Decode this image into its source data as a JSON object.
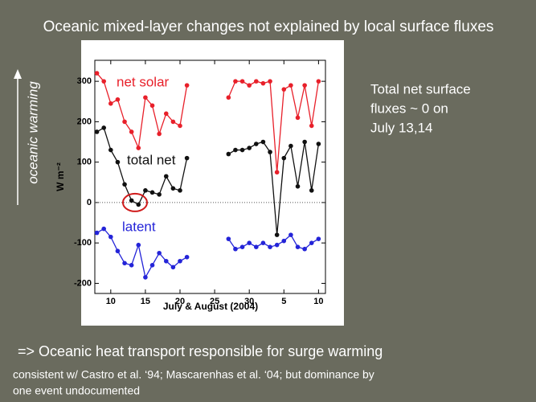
{
  "slide": {
    "title": "Oceanic mixed-layer changes not explained by local surface fluxes",
    "side_note": [
      "Total net surface",
      "fluxes ~  0 on",
      "July 13,14"
    ],
    "arrow_label": "oceanic warming",
    "conclusion": "=> Oceanic heat transport responsible for surge warming",
    "footnote": [
      "consistent w/ Castro et al. ‘94; Mascarenhas et al. ‘04; but dominance by",
      "one event undocumented"
    ]
  },
  "chart_data": {
    "type": "line",
    "x_label": "July & August (2004)",
    "y_label": "W m⁻²",
    "x": [
      8,
      9,
      10,
      11,
      12,
      13,
      14,
      15,
      16,
      17,
      18,
      19,
      20,
      21,
      24,
      27,
      28,
      29,
      30,
      31,
      32,
      33,
      34,
      35,
      36,
      37,
      38,
      39,
      40
    ],
    "series": [
      {
        "name": "net solar",
        "color": "#e8202a",
        "values": [
          320,
          300,
          245,
          255,
          200,
          175,
          135,
          260,
          240,
          170,
          220,
          200,
          190,
          290,
          null,
          260,
          300,
          300,
          290,
          300,
          295,
          300,
          75,
          280,
          290,
          210,
          290,
          190,
          300
        ]
      },
      {
        "name": "total net",
        "color": "#111111",
        "values": [
          175,
          185,
          130,
          100,
          45,
          5,
          -5,
          30,
          25,
          20,
          65,
          35,
          30,
          110,
          null,
          120,
          130,
          130,
          135,
          145,
          150,
          125,
          -80,
          110,
          140,
          40,
          150,
          30,
          145
        ]
      },
      {
        "name": "latent",
        "color": "#2424d8",
        "values": [
          -75,
          -65,
          -85,
          -120,
          -150,
          -155,
          -105,
          -185,
          -155,
          -125,
          -145,
          -160,
          -145,
          -135,
          null,
          -90,
          -115,
          -110,
          -100,
          -110,
          -100,
          -110,
          -105,
          -95,
          -80,
          -110,
          -115,
          -100,
          -90
        ]
      }
    ],
    "xlim": [
      7.7,
      41
    ],
    "xticks": [
      10,
      15,
      20,
      25,
      30,
      {
        "value": 35,
        "label": "5"
      },
      {
        "value": 40,
        "label": "10"
      }
    ],
    "ylim": [
      -225,
      352
    ],
    "yticks": [
      -200,
      -100,
      0,
      100,
      200,
      300
    ]
  }
}
